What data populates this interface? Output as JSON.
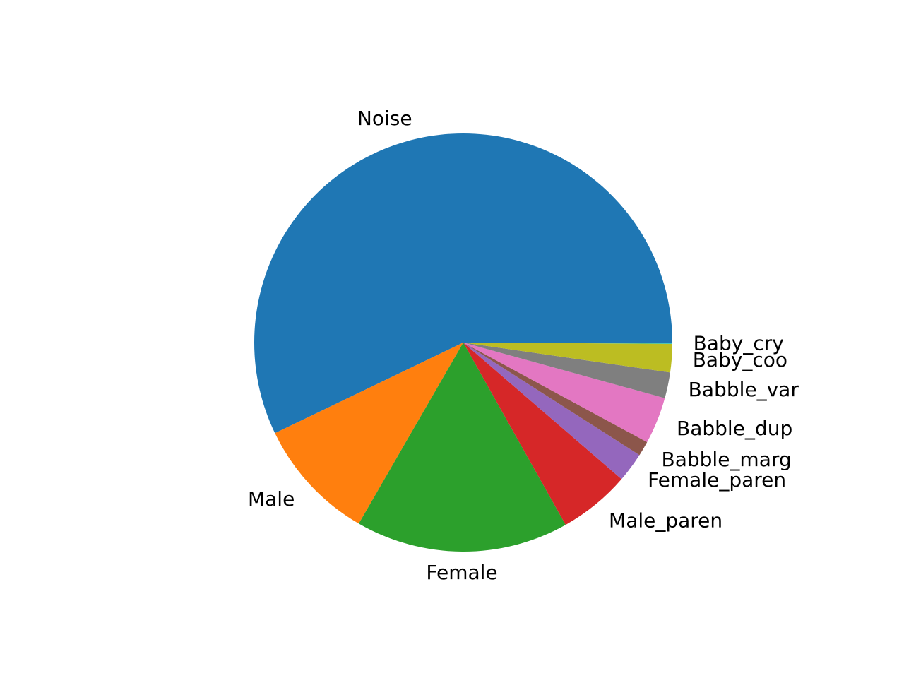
{
  "chart_data": {
    "type": "pie",
    "title": "",
    "start_angle_deg": 0,
    "direction": "counterclockwise",
    "slices": [
      {
        "label": "Noise",
        "value": 60.0,
        "color": "#1f77b4"
      },
      {
        "label": "Male",
        "value": 10.0,
        "color": "#ff7f0e"
      },
      {
        "label": "Female",
        "value": 17.3,
        "color": "#2ca02c"
      },
      {
        "label": "Male_paren",
        "value": 5.8,
        "color": "#d62728"
      },
      {
        "label": "Female_paren",
        "value": 2.4,
        "color": "#9467bd"
      },
      {
        "label": "Babble_marg",
        "value": 1.2,
        "color": "#8c564b"
      },
      {
        "label": "Babble_dup",
        "value": 3.8,
        "color": "#e377c2"
      },
      {
        "label": "Babble_var",
        "value": 2.1,
        "color": "#7f7f7f"
      },
      {
        "label": "Baby_coo",
        "value": 2.3,
        "color": "#bcbd22"
      },
      {
        "label": "Baby_cry",
        "value": 0.1,
        "color": "#17becf"
      }
    ]
  }
}
